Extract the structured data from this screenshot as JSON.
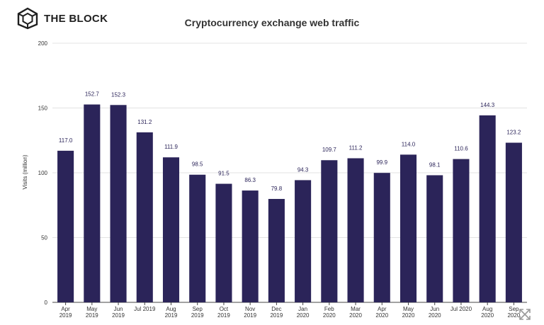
{
  "header": {
    "brand": "THE BLOCK",
    "logo_icon": "cube-icon",
    "title": "Cryptocurrency exchange web traffic"
  },
  "controls": {
    "expand_icon": "expand-icon"
  },
  "chart_data": {
    "type": "bar",
    "title": "Cryptocurrency exchange web traffic",
    "xlabel": "",
    "ylabel": "Visits (million)",
    "ylim": [
      0,
      200
    ],
    "yticks": [
      0,
      50,
      100,
      150,
      200
    ],
    "grid": true,
    "bar_color": "#2b2459",
    "categories": [
      [
        "Apr",
        "2019"
      ],
      [
        "May",
        "2019"
      ],
      [
        "Jun",
        "2019"
      ],
      [
        "Jul 2019"
      ],
      [
        "Aug",
        "2019"
      ],
      [
        "Sep",
        "2019"
      ],
      [
        "Oct",
        "2019"
      ],
      [
        "Nov",
        "2019"
      ],
      [
        "Dec",
        "2019"
      ],
      [
        "Jan",
        "2020"
      ],
      [
        "Feb",
        "2020"
      ],
      [
        "Mar",
        "2020"
      ],
      [
        "Apr",
        "2020"
      ],
      [
        "May",
        "2020"
      ],
      [
        "Jun",
        "2020"
      ],
      [
        "Jul 2020"
      ],
      [
        "Aug",
        "2020"
      ],
      [
        "Sep",
        "2020"
      ]
    ],
    "values": [
      117.0,
      152.7,
      152.3,
      131.2,
      111.9,
      98.5,
      91.5,
      86.3,
      79.8,
      94.3,
      109.7,
      111.2,
      99.9,
      114.0,
      98.1,
      110.6,
      144.3,
      123.2
    ],
    "data_labels": [
      "117.0",
      "152.7",
      "152.3",
      "131.2",
      "111.9",
      "98.5",
      "91.5",
      "86.3",
      "79.8",
      "94.3",
      "109.7",
      "111.2",
      "99.9",
      "114.0",
      "98.1",
      "110.6",
      "144.3",
      "123.2"
    ]
  }
}
